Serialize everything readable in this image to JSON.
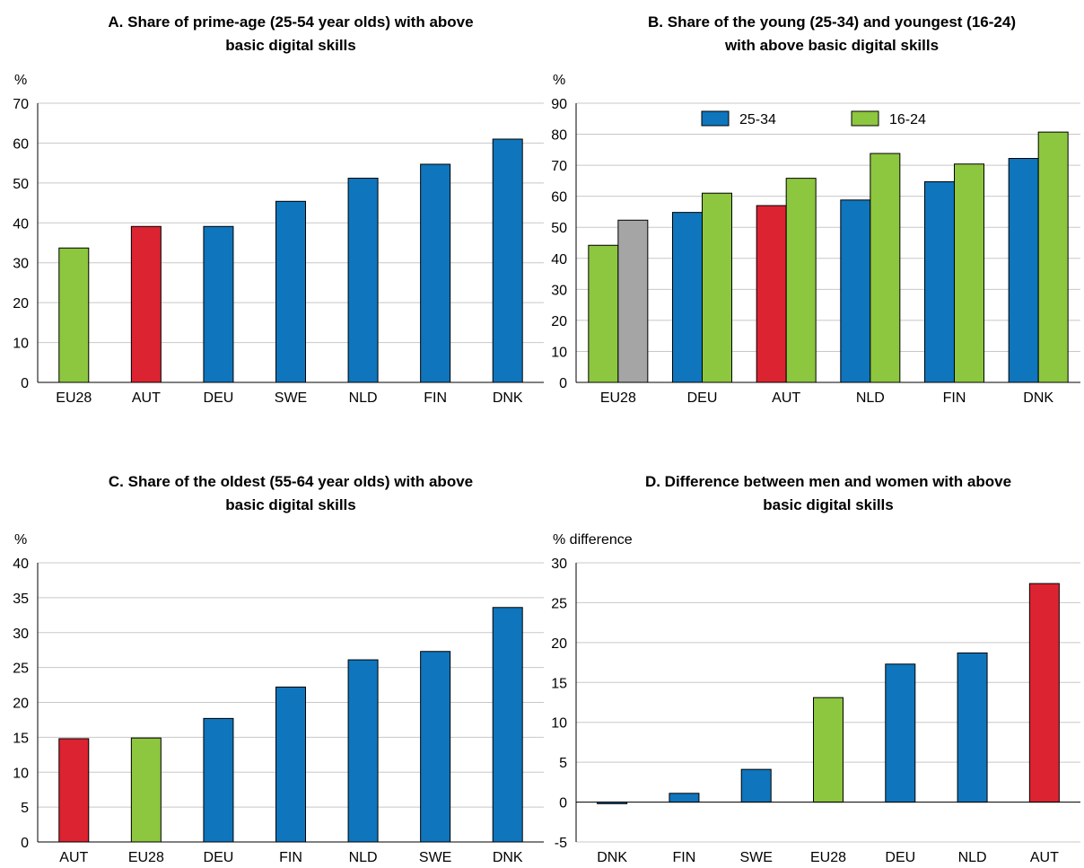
{
  "chart_data": [
    {
      "type": "bar",
      "title": "A. Share of prime-age (25-54 year olds) with above basic digital skills",
      "title_lines": [
        "A. Share of prime-age (25-54 year olds) with above",
        "basic digital skills"
      ],
      "unit_label": "%",
      "ylim": [
        0,
        70
      ],
      "yticks": [
        0,
        10,
        20,
        30,
        40,
        50,
        60,
        70
      ],
      "grid": true,
      "categories": [
        "EU28",
        "AUT",
        "DEU",
        "SWE",
        "NLD",
        "FIN",
        "DNK"
      ],
      "series": [
        {
          "values": [
            33.7,
            39.1,
            39.1,
            45.4,
            51.2,
            54.7,
            61.0
          ],
          "colors": [
            "#8dc63f",
            "#dc2331",
            "#0f75bc",
            "#0f75bc",
            "#0f75bc",
            "#0f75bc",
            "#0f75bc"
          ]
        }
      ]
    },
    {
      "type": "bar",
      "title": "B. Share of the young (25-34) and youngest (16-24) with above basic digital skills",
      "title_lines": [
        "B. Share of the young (25-34) and youngest (16-24)",
        "with above basic digital skills"
      ],
      "unit_label": "%",
      "ylim": [
        0,
        90
      ],
      "yticks": [
        0,
        10,
        20,
        30,
        40,
        50,
        60,
        70,
        80,
        90
      ],
      "grid": true,
      "legend_placement": "top",
      "categories": [
        "EU28",
        "DEU",
        "AUT",
        "NLD",
        "FIN",
        "DNK"
      ],
      "series": [
        {
          "name": "25-34",
          "legend_color": "#0f75bc",
          "values": [
            44.2,
            54.8,
            57.0,
            58.8,
            64.7,
            72.2
          ],
          "colors": [
            "#8dc63f",
            "#0f75bc",
            "#dc2331",
            "#0f75bc",
            "#0f75bc",
            "#0f75bc"
          ]
        },
        {
          "name": "16-24",
          "legend_color": "#8dc63f",
          "values": [
            52.3,
            61.0,
            65.8,
            73.8,
            70.4,
            80.7
          ],
          "colors": [
            "#a5a5a5",
            "#8dc63f",
            "#8dc63f",
            "#8dc63f",
            "#8dc63f",
            "#8dc63f"
          ]
        }
      ]
    },
    {
      "type": "bar",
      "title": "C. Share of the oldest (55-64 year olds) with above basic digital skills",
      "title_lines": [
        "C. Share of the oldest (55-64 year olds) with above",
        "basic digital skills"
      ],
      "unit_label": "%",
      "ylim": [
        0,
        40
      ],
      "yticks": [
        0,
        5,
        10,
        15,
        20,
        25,
        30,
        35,
        40
      ],
      "grid": true,
      "categories": [
        "AUT",
        "EU28",
        "DEU",
        "FIN",
        "NLD",
        "SWE",
        "DNK"
      ],
      "series": [
        {
          "values": [
            14.8,
            14.9,
            17.7,
            22.2,
            26.1,
            27.3,
            33.6
          ],
          "colors": [
            "#dc2331",
            "#8dc63f",
            "#0f75bc",
            "#0f75bc",
            "#0f75bc",
            "#0f75bc",
            "#0f75bc"
          ]
        }
      ]
    },
    {
      "type": "bar",
      "title": "D. Difference between men and women with above basic digital skills",
      "title_lines": [
        "D. Difference between men and women with above",
        "basic digital skills"
      ],
      "unit_label": "% difference",
      "ylim": [
        -5,
        30
      ],
      "yticks": [
        -5,
        0,
        5,
        10,
        15,
        20,
        25,
        30
      ],
      "grid": true,
      "categories": [
        "DNK",
        "FIN",
        "SWE",
        "EU28",
        "DEU",
        "NLD",
        "AUT"
      ],
      "series": [
        {
          "values": [
            -0.2,
            1.1,
            4.1,
            13.1,
            17.3,
            18.7,
            27.4
          ],
          "colors": [
            "#0f75bc",
            "#0f75bc",
            "#0f75bc",
            "#8dc63f",
            "#0f75bc",
            "#0f75bc",
            "#dc2331"
          ]
        }
      ]
    }
  ]
}
